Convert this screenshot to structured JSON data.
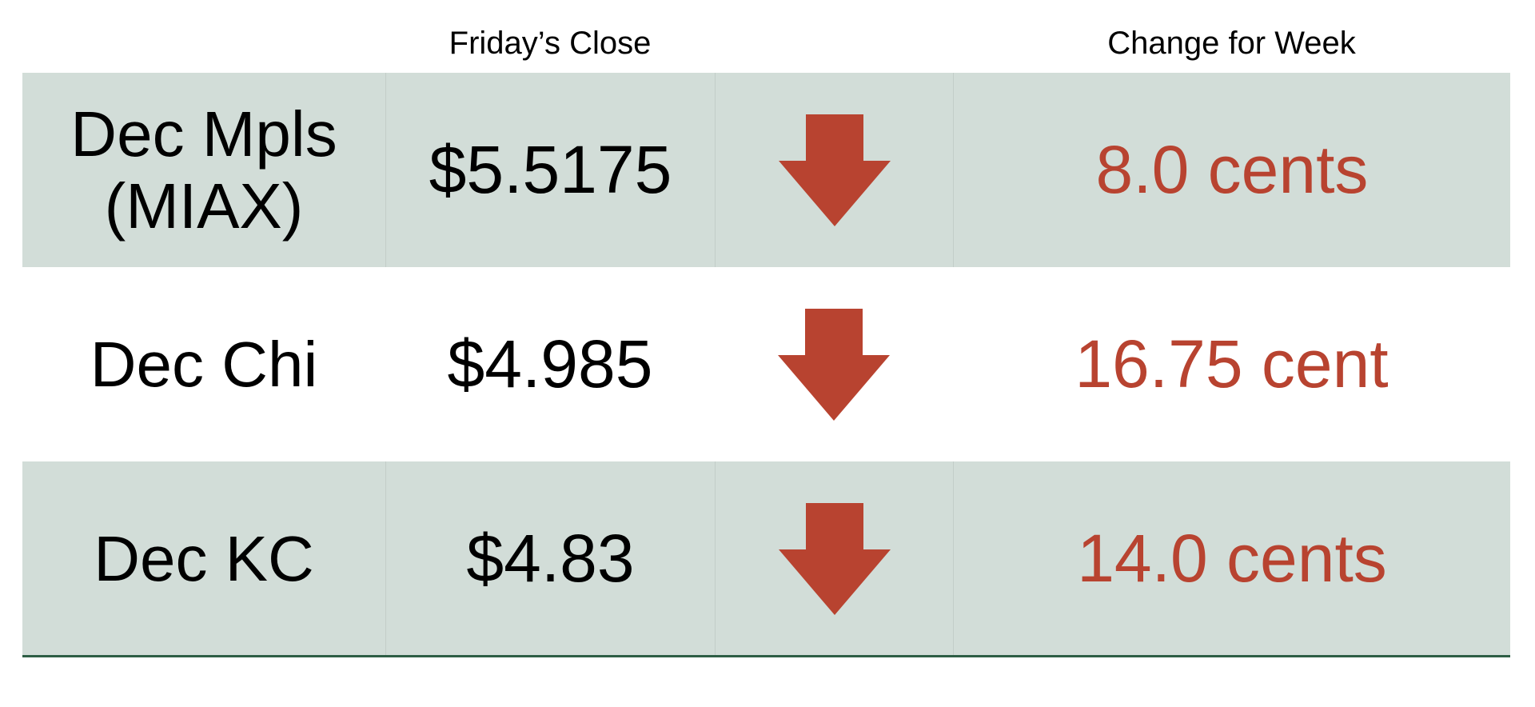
{
  "header": {
    "close_label": "Friday’s Close",
    "change_label": "Change for Week"
  },
  "rows": [
    {
      "name_line1": "Dec Mpls",
      "name_line2": "(MIAX)",
      "close": "$5.5175",
      "direction": "down-arrow-icon",
      "change": "8.0 cents"
    },
    {
      "name_line1": "Dec Chi",
      "close": "$4.985",
      "direction": "down-arrow-icon",
      "change": "16.75 cent"
    },
    {
      "name_line1": "Dec KC",
      "close": "$4.83",
      "direction": "down-arrow-icon",
      "change": "14.0 cents"
    }
  ],
  "colors": {
    "shaded_row": "#d2ddd8",
    "arrow": "#b84330",
    "change_text": "#b84330",
    "bottom_rule": "#2e5e45"
  }
}
